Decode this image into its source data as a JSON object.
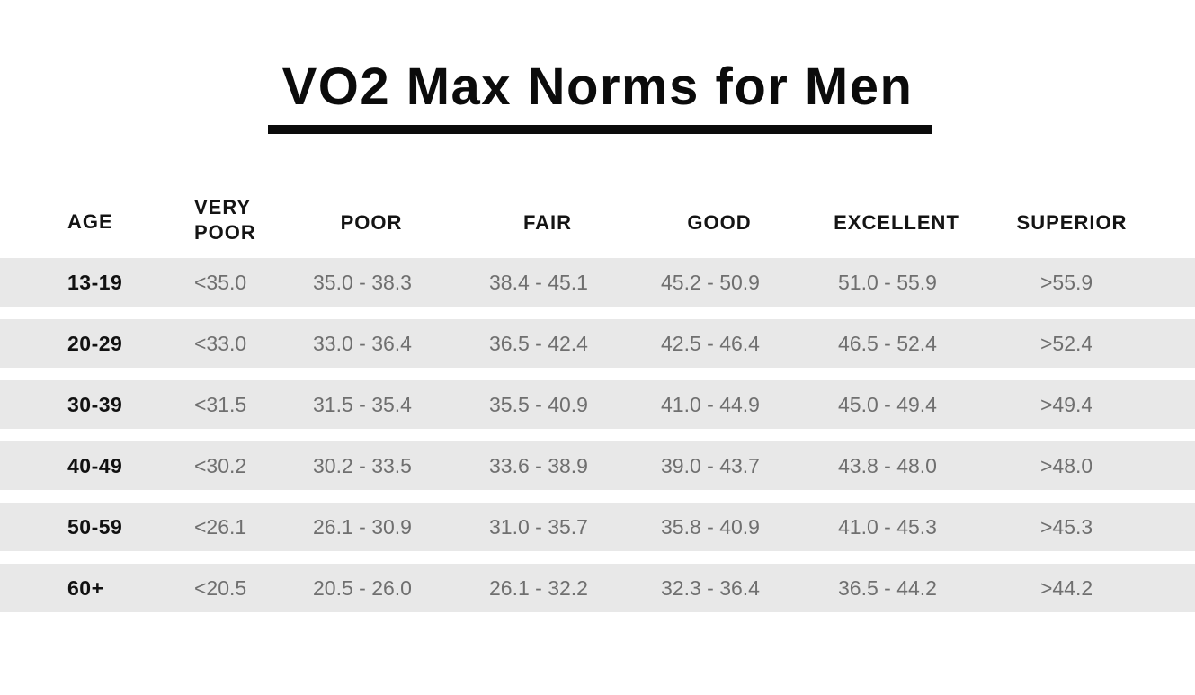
{
  "title": "VO2 Max Norms for Men",
  "table": {
    "headers": {
      "age": "AGE",
      "very_poor_line1": "VERY",
      "very_poor_line2": "POOR",
      "poor": "POOR",
      "fair": "FAIR",
      "good": "GOOD",
      "excellent": "EXCELLENT",
      "superior": "SUPERIOR"
    },
    "rows": [
      {
        "age": "13-19",
        "very_poor": "<35.0",
        "poor": "35.0 - 38.3",
        "fair": "38.4 - 45.1",
        "good": "45.2 - 50.9",
        "excellent": "51.0 - 55.9",
        "superior": ">55.9"
      },
      {
        "age": "20-29",
        "very_poor": "<33.0",
        "poor": "33.0 - 36.4",
        "fair": "36.5 - 42.4",
        "good": "42.5 - 46.4",
        "excellent": "46.5 - 52.4",
        "superior": ">52.4"
      },
      {
        "age": "30-39",
        "very_poor": "<31.5",
        "poor": "31.5 - 35.4",
        "fair": "35.5 - 40.9",
        "good": "41.0 - 44.9",
        "excellent": "45.0 - 49.4",
        "superior": ">49.4"
      },
      {
        "age": "40-49",
        "very_poor": "<30.2",
        "poor": "30.2 - 33.5",
        "fair": "33.6 - 38.9",
        "good": "39.0 - 43.7",
        "excellent": "43.8 - 48.0",
        "superior": ">48.0"
      },
      {
        "age": "50-59",
        "very_poor": "<26.1",
        "poor": "26.1 - 30.9",
        "fair": "31.0 - 35.7",
        "good": "35.8 - 40.9",
        "excellent": "41.0 - 45.3",
        "superior": ">45.3"
      },
      {
        "age": "60+",
        "very_poor": "<20.5",
        "poor": "20.5 - 26.0",
        "fair": "26.1 - 32.2",
        "good": "32.3 - 36.4",
        "excellent": "36.5 - 44.2",
        "superior": ">44.2"
      }
    ]
  },
  "colors": {
    "title": "#0b0b0b",
    "row_band": "#e8e8e8",
    "value_text": "#6f6f6f",
    "age_text": "#111111"
  }
}
